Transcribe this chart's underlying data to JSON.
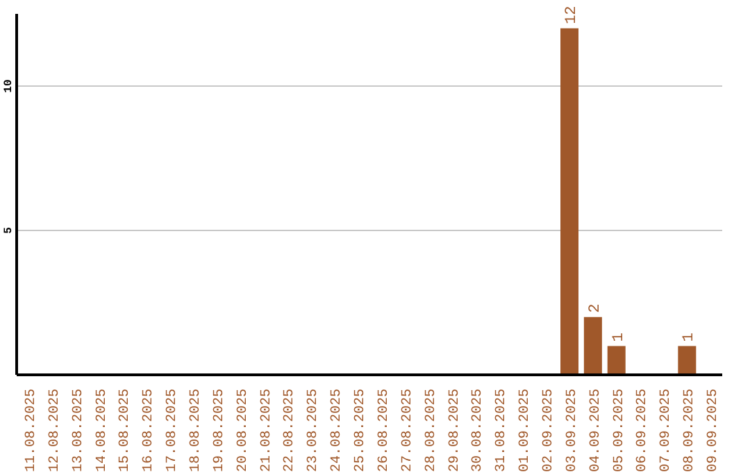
{
  "chart_data": {
    "type": "bar",
    "categories": [
      "11.08.2025",
      "12.08.2025",
      "13.08.2025",
      "14.08.2025",
      "15.08.2025",
      "16.08.2025",
      "17.08.2025",
      "18.08.2025",
      "19.08.2025",
      "20.08.2025",
      "21.08.2025",
      "22.08.2025",
      "23.08.2025",
      "24.08.2025",
      "25.08.2025",
      "26.08.2025",
      "27.08.2025",
      "28.08.2025",
      "29.08.2025",
      "30.08.2025",
      "31.08.2025",
      "01.09.2025",
      "02.09.2025",
      "03.09.2025",
      "04.09.2025",
      "05.09.2025",
      "06.09.2025",
      "07.09.2025",
      "08.09.2025",
      "09.09.2025"
    ],
    "values": [
      0,
      0,
      0,
      0,
      0,
      0,
      0,
      0,
      0,
      0,
      0,
      0,
      0,
      0,
      0,
      0,
      0,
      0,
      0,
      0,
      0,
      0,
      0,
      12,
      2,
      1,
      0,
      0,
      1,
      0
    ],
    "value_labels": [
      null,
      null,
      null,
      null,
      null,
      null,
      null,
      null,
      null,
      null,
      null,
      null,
      null,
      null,
      null,
      null,
      null,
      null,
      null,
      null,
      null,
      null,
      null,
      "12",
      "2",
      "1",
      null,
      null,
      "1",
      null
    ],
    "color": "#a0582a",
    "ylim": [
      0,
      12.5
    ],
    "yticks": [
      5,
      10
    ],
    "grid": "y"
  }
}
